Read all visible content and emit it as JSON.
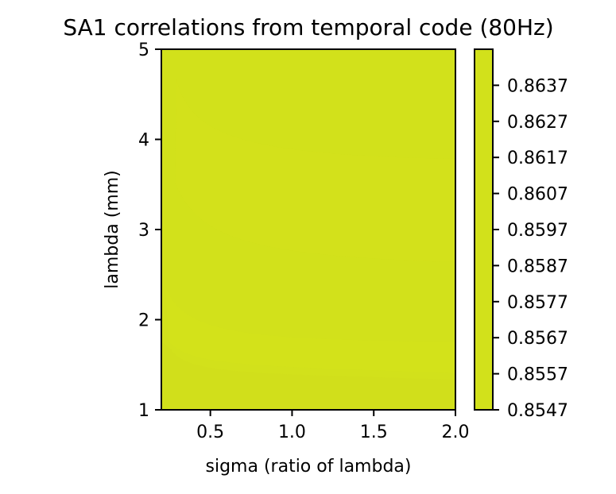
{
  "chart_data": {
    "type": "heatmap",
    "title": "SA1 correlations from temporal code (80Hz)",
    "xlabel": "sigma (ratio of lambda)",
    "ylabel": "lambda (mm)",
    "xlim": [
      0.2,
      2.0
    ],
    "ylim": [
      1,
      5
    ],
    "xticks": [
      0.5,
      1.0,
      1.5,
      2.0
    ],
    "xtick_labels": [
      "0.5",
      "1.0",
      "1.5",
      "2.0"
    ],
    "yticks": [
      1,
      2,
      3,
      4,
      5
    ],
    "ytick_labels": [
      "1",
      "2",
      "3",
      "4",
      "5"
    ],
    "colorbar": {
      "range": [
        0.8547,
        0.8647
      ],
      "ticks": [
        0.8547,
        0.8557,
        0.8567,
        0.8577,
        0.8587,
        0.8597,
        0.8607,
        0.8617,
        0.8627,
        0.8637
      ],
      "tick_labels": [
        "0.8547",
        "0.8557",
        "0.8567",
        "0.8577",
        "0.8587",
        "0.8597",
        "0.8607",
        "0.8617",
        "0.8627",
        "0.8637"
      ]
    },
    "fill_color": "#d2e11b",
    "grid": false
  }
}
